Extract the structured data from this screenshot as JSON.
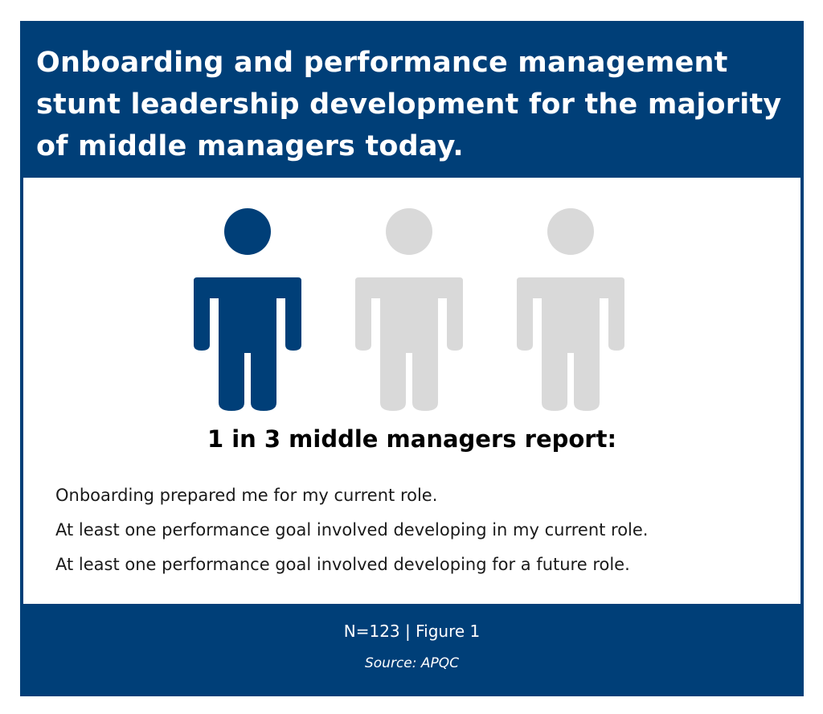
{
  "header": {
    "title": "Onboarding and performance management stunt leadership development for the majority of middle managers today."
  },
  "figure": {
    "icons": [
      {
        "name": "person-icon-highlighted",
        "highlighted": true
      },
      {
        "name": "person-icon",
        "highlighted": false
      },
      {
        "name": "person-icon",
        "highlighted": false
      }
    ],
    "highlighted_fraction": "1/3",
    "colors": {
      "highlight": "#003f78",
      "muted": "#d9d9d9",
      "frame": "#003f78"
    }
  },
  "stat": {
    "heading": "1 in 3 middle managers report:"
  },
  "statements": [
    "Onboarding prepared me for my current role.",
    "At least one performance goal involved developing in my current role.",
    "At least one performance goal involved developing for a future role."
  ],
  "footer": {
    "reference": "N=123 | Figure 1",
    "source": "Source: APQC"
  }
}
